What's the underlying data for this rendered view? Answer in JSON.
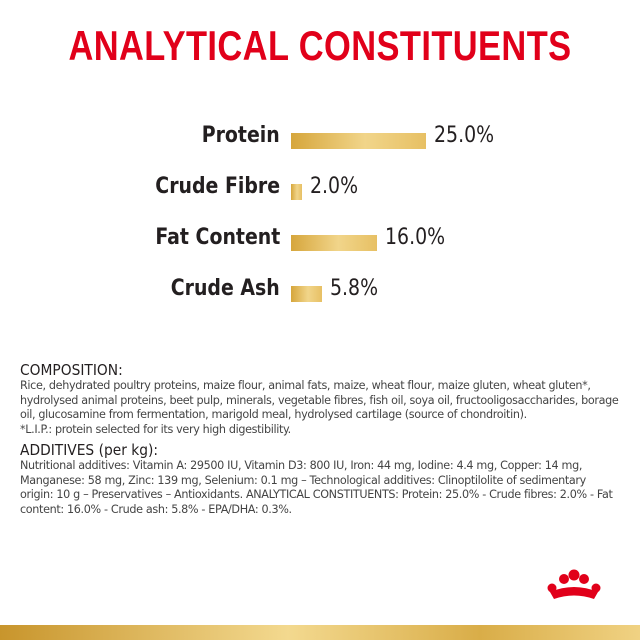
{
  "title": "ANALYTICAL CONSTITUENTS",
  "chart_data": {
    "type": "bar",
    "orientation": "horizontal",
    "categories": [
      "Protein",
      "Crude Fibre",
      "Fat Content",
      "Crude Ash"
    ],
    "values": [
      25.0,
      2.0,
      16.0,
      5.8
    ],
    "value_labels": [
      "25.0%",
      "2.0%",
      "16.0%",
      "5.8%"
    ],
    "unit": "%",
    "bar_color": "#e2b655",
    "grid": false
  },
  "composition": {
    "heading": "COMPOSITION:",
    "text": "Rice, dehydrated poultry proteins, maize flour, animal fats, maize, wheat flour, maize gluten, wheat gluten*, hydrolysed animal proteins, beet pulp, minerals, vegetable fibres, fish oil, soya oil, fructooligosaccharides, borage oil, glucosamine from fermentation, marigold meal, hydrolysed cartilage (source of chondroitin).",
    "note": "*L.I.P.: protein selected for its very high digestibility."
  },
  "additives": {
    "heading": "ADDITIVES (per kg):",
    "text": "Nutritional additives: Vitamin A: 29500 IU, Vitamin D3: 800 IU, Iron: 44 mg, Iodine: 4.4 mg, Copper: 14 mg, Manganese: 58 mg, Zinc: 139 mg, Selenium: 0.1 mg – Technological additives: Clinoptilolite of sedimentary origin: 10 g – Preservatives – Antioxidants. ANALYTICAL CONSTITUENTS: Protein: 25.0% - Crude fibres: 2.0% - Fat content: 16.0% - Crude ash: 5.8% - EPA/DHA: 0.3%."
  },
  "colors": {
    "title": "#e1001a",
    "text": "#231f20",
    "logo": "#e1001a",
    "footer_gold": "#e2b655"
  },
  "logo_icon": "royal-canin-crown-icon"
}
